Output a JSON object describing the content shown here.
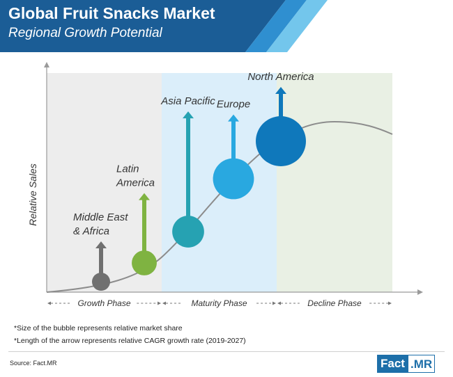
{
  "header": {
    "title": "Global Fruit Snacks Market",
    "subtitle": "Regional Growth Potential"
  },
  "chart_data": {
    "type": "scatter",
    "ylabel": "Relative Sales",
    "phases": [
      {
        "name": "Growth Phase",
        "color": "#ededed"
      },
      {
        "name": "Maturity Phase",
        "color": "#dbeefa"
      },
      {
        "name": "Decline Phase",
        "color": "#e9f0e4"
      }
    ],
    "series": [
      {
        "label_lines": [
          "Middle East",
          "& Africa"
        ],
        "color": "#707070",
        "market_share": 0.3,
        "cagr": 0.3
      },
      {
        "label_lines": [
          "Latin",
          "America"
        ],
        "color": "#7fb341",
        "market_share": 0.45,
        "cagr": 0.55
      },
      {
        "label_lines": [
          "Asia Pacific"
        ],
        "color": "#26a2b2",
        "market_share": 0.6,
        "cagr": 1.0
      },
      {
        "label_lines": [
          "Europe"
        ],
        "color": "#29a8e0",
        "market_share": 0.8,
        "cagr": 0.42
      },
      {
        "label_lines": [
          "North America"
        ],
        "color": "#0f78bb",
        "market_share": 1.0,
        "cagr": 0.28
      }
    ]
  },
  "notes": [
    "*Size of the bubble represents relative market share",
    "*Length of the arrow represents relative CAGR growth rate (2019-2027)"
  ],
  "source": "Source: Fact.MR",
  "logo": {
    "part1": "Fact",
    "part2": ".MR"
  },
  "colors": {
    "header_dark": "#1b5d96",
    "header_mid": "#2f8fd0",
    "header_light": "#73c6ec"
  }
}
